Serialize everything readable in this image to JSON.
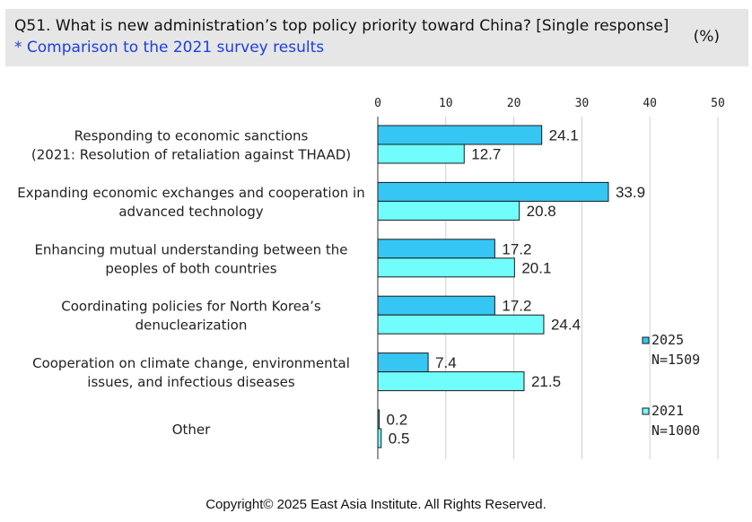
{
  "header": {
    "question": "Q51. What is new administration’s top policy priority toward China? [Single response]",
    "subtitle": "* Comparison to the 2021 survey results",
    "unit": "(%)"
  },
  "footer": "Copyright© 2025 East Asia Institute. All Rights Reserved.",
  "colors": {
    "series_2025": "#35c6f4",
    "series_2021": "#72fdfd",
    "bar_stroke": "#1a1a1a",
    "grid": "#d0d0d0"
  },
  "chart_data": {
    "type": "bar",
    "orientation": "horizontal",
    "title": "Q51. What is new administration’s top policy priority toward China? [Single response]",
    "unit": "%",
    "xlim": [
      0,
      50
    ],
    "ticks": [
      0,
      10,
      20,
      30,
      40,
      50
    ],
    "categories": [
      [
        "Responding to economic sanctions",
        "(2021: Resolution of retaliation against THAAD)"
      ],
      [
        "Expanding economic exchanges and cooperation in",
        "advanced technology"
      ],
      [
        "Enhancing mutual understanding between the",
        "peoples of both countries"
      ],
      [
        "Coordinating policies for North Korea’s",
        "denuclearization"
      ],
      [
        "Cooperation on climate change, environmental",
        "issues, and infectious diseases"
      ],
      [
        "Other"
      ]
    ],
    "series": [
      {
        "name": "2025",
        "n_label": "N=1509",
        "values": [
          24.1,
          33.9,
          17.2,
          17.2,
          7.4,
          0.2
        ]
      },
      {
        "name": "2021",
        "n_label": "N=1000",
        "values": [
          12.7,
          20.8,
          20.1,
          24.4,
          21.5,
          0.5
        ]
      }
    ],
    "legend_position": "right"
  }
}
